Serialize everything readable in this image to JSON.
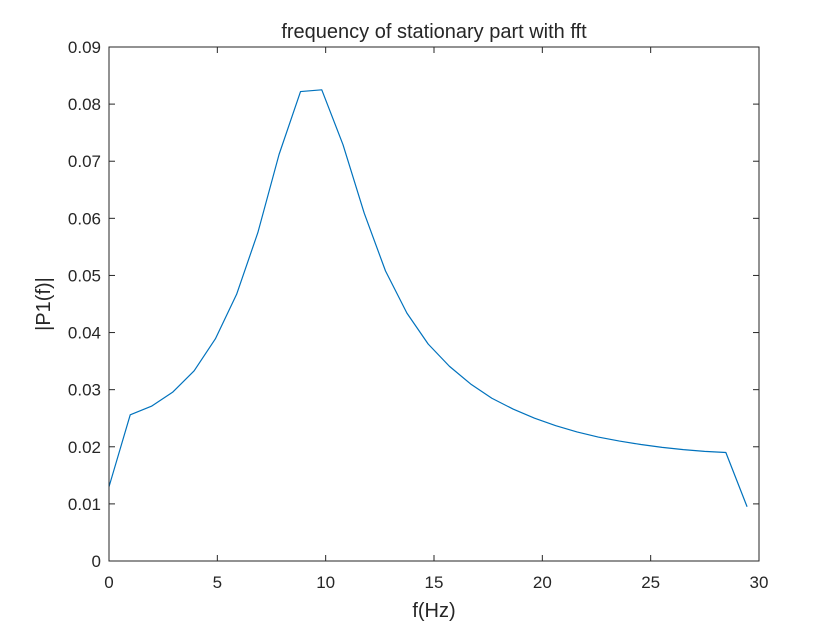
{
  "chart_data": {
    "type": "line",
    "title": "frequency of stationary part with fft",
    "xlabel": "f(Hz)",
    "ylabel": "|P1(f)|",
    "xlim": [
      0,
      30
    ],
    "ylim": [
      0,
      0.09
    ],
    "xticks": [
      "0",
      "5",
      "10",
      "15",
      "20",
      "25",
      "30"
    ],
    "yticks": [
      "0",
      "0.01",
      "0.02",
      "0.03",
      "0.04",
      "0.05",
      "0.06",
      "0.07",
      "0.08",
      "0.09"
    ],
    "grid": false,
    "line_color": "#0072BD",
    "series": [
      {
        "x": [
          0,
          0.98,
          1.96,
          2.95,
          3.93,
          4.91,
          5.89,
          6.87,
          7.85,
          8.84,
          9.82,
          10.8,
          11.78,
          12.76,
          13.75,
          14.73,
          15.71,
          16.69,
          17.67,
          18.65,
          19.64,
          20.62,
          21.6,
          22.58,
          23.56,
          24.55,
          25.53,
          26.51,
          27.49,
          28.47,
          29.45
        ],
        "y": [
          0.013,
          0.0256,
          0.0271,
          0.0296,
          0.0333,
          0.0389,
          0.0467,
          0.0575,
          0.0712,
          0.0822,
          0.0825,
          0.0729,
          0.0609,
          0.0508,
          0.0434,
          0.038,
          0.0341,
          0.031,
          0.0285,
          0.0266,
          0.025,
          0.0237,
          0.0226,
          0.0217,
          0.021,
          0.0204,
          0.0199,
          0.0195,
          0.0192,
          0.019,
          0.0095
        ]
      }
    ]
  }
}
